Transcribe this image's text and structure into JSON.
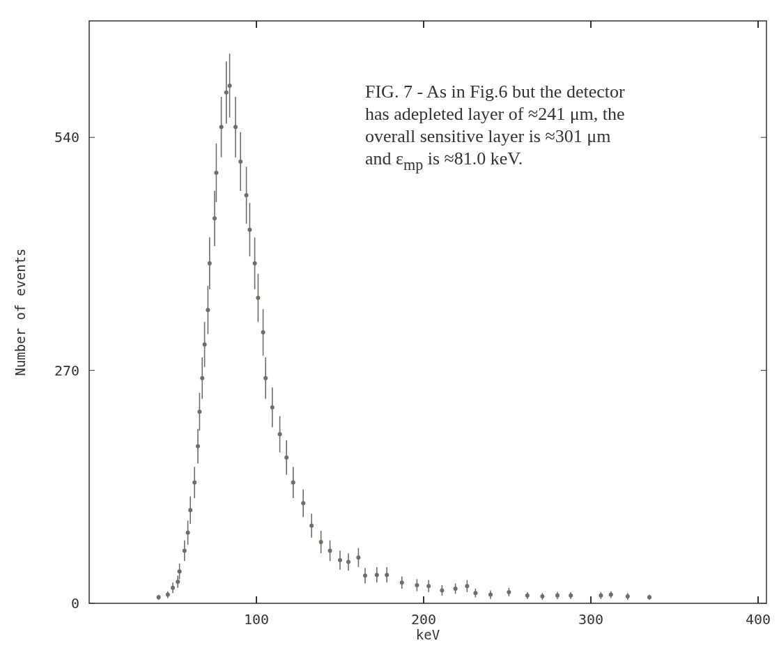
{
  "chart_data": {
    "type": "scatter",
    "xlabel": "keV",
    "ylabel": "Number of events",
    "annotations": [
      "FIG. 7 - As in Fig.6 but the detector has adepleted layer of ≈241 μm, the overall sensitive layer is ≈301 μm and ε$_{mp}$ is ≈81.0 keV."
    ],
    "xlim": [
      0,
      405
    ],
    "ylim": [
      0,
      675
    ],
    "xticks": [
      100,
      200,
      300,
      400
    ],
    "yticks": [
      0,
      270,
      540
    ],
    "grid": false,
    "series": [
      {
        "color": "#6e6e66",
        "x": [
          41.5,
          47,
          50,
          53,
          54,
          57,
          59,
          60.5,
          63,
          65,
          66,
          67.6,
          69,
          71,
          72,
          75,
          76,
          79,
          82,
          84,
          87.5,
          90.5,
          94,
          96,
          99,
          101,
          104,
          105.5,
          109.5,
          114,
          118,
          122,
          128,
          133,
          138.6,
          144,
          150,
          155,
          161,
          165,
          172,
          178,
          187,
          196,
          203,
          211,
          219,
          226,
          231,
          240,
          251,
          262,
          271,
          280,
          288,
          306,
          312,
          322,
          335
        ],
        "values": [
          7,
          10,
          18,
          25,
          37,
          61,
          82,
          108,
          140,
          182,
          222,
          261,
          300,
          340,
          394,
          446,
          499,
          552,
          592,
          600,
          552,
          512,
          473,
          433,
          394,
          354,
          314,
          261,
          227,
          196,
          169,
          140,
          116,
          90,
          71,
          61,
          50,
          48,
          53,
          32,
          33,
          33,
          24,
          21,
          20,
          15,
          17,
          20,
          12,
          10,
          13,
          9,
          8,
          9,
          9,
          9,
          10,
          8,
          7
        ],
        "errors": [
          3,
          4,
          6,
          7,
          9,
          12,
          14,
          16,
          18,
          20,
          22,
          24,
          26,
          28,
          30,
          32,
          34,
          35,
          36,
          37,
          35,
          34,
          33,
          31,
          30,
          28,
          27,
          24,
          23,
          21,
          20,
          18,
          16,
          14,
          13,
          12,
          11,
          10,
          11,
          9,
          9,
          9,
          7,
          7,
          7,
          6,
          6,
          7,
          5,
          5,
          5,
          4,
          4,
          4,
          4,
          4,
          4,
          4,
          3
        ]
      }
    ]
  }
}
